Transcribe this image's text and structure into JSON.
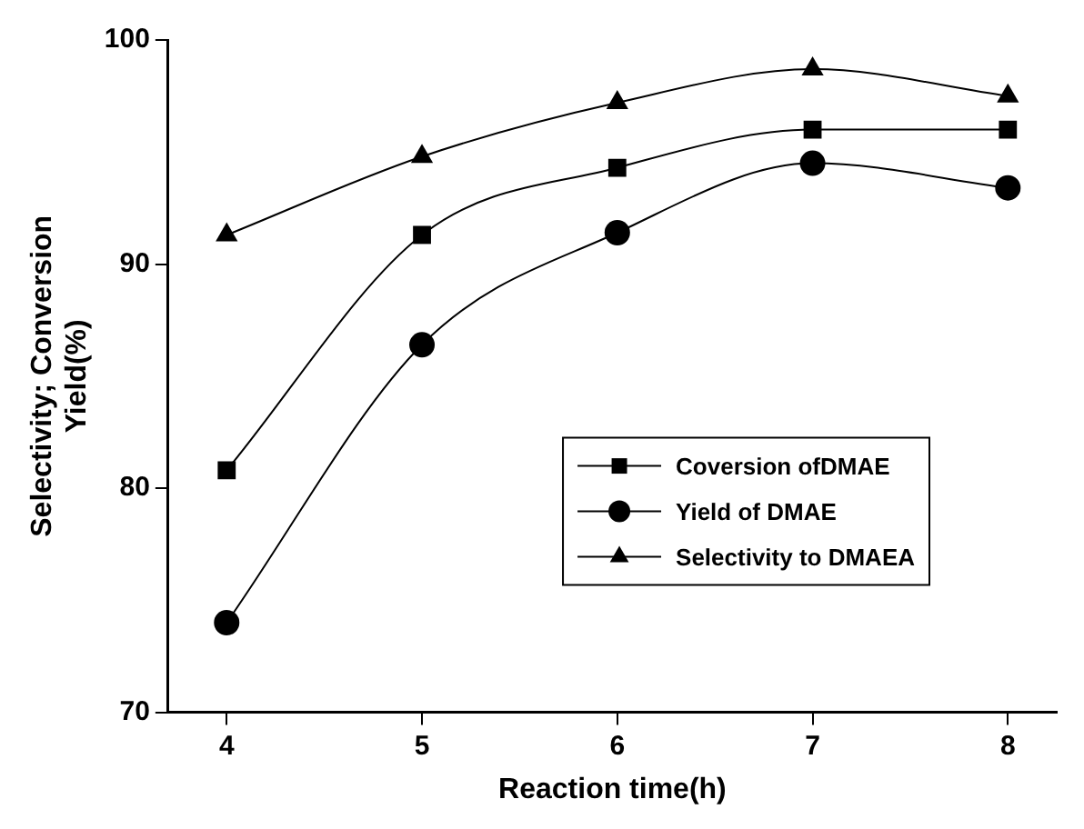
{
  "chart_data": {
    "type": "line",
    "xlabel": "Reaction time(h)",
    "ylabel": "Selectivity; Conversion\nYield(%)",
    "x": [
      4,
      5,
      6,
      7,
      8
    ],
    "xlim": [
      3.7,
      8.25
    ],
    "xticks": [
      4,
      5,
      6,
      7,
      8
    ],
    "ylim": [
      70,
      100
    ],
    "yticks": [
      70,
      80,
      90,
      100
    ],
    "grid": false,
    "legend": "bottom right",
    "line_style": "solid",
    "series": [
      {
        "name": "Coversion ofDMAE",
        "color": "#000000",
        "marker": "square",
        "values": [
          80.8,
          91.3,
          94.3,
          96.0,
          96.0
        ]
      },
      {
        "name": "Yield of DMAE",
        "color": "#000000",
        "marker": "circle",
        "values": [
          74.0,
          86.4,
          91.4,
          94.5,
          93.4
        ]
      },
      {
        "name": "Selectivity to DMAEA",
        "color": "#000000",
        "marker": "triangle",
        "values": [
          91.3,
          94.8,
          97.2,
          98.7,
          97.5
        ]
      }
    ]
  }
}
